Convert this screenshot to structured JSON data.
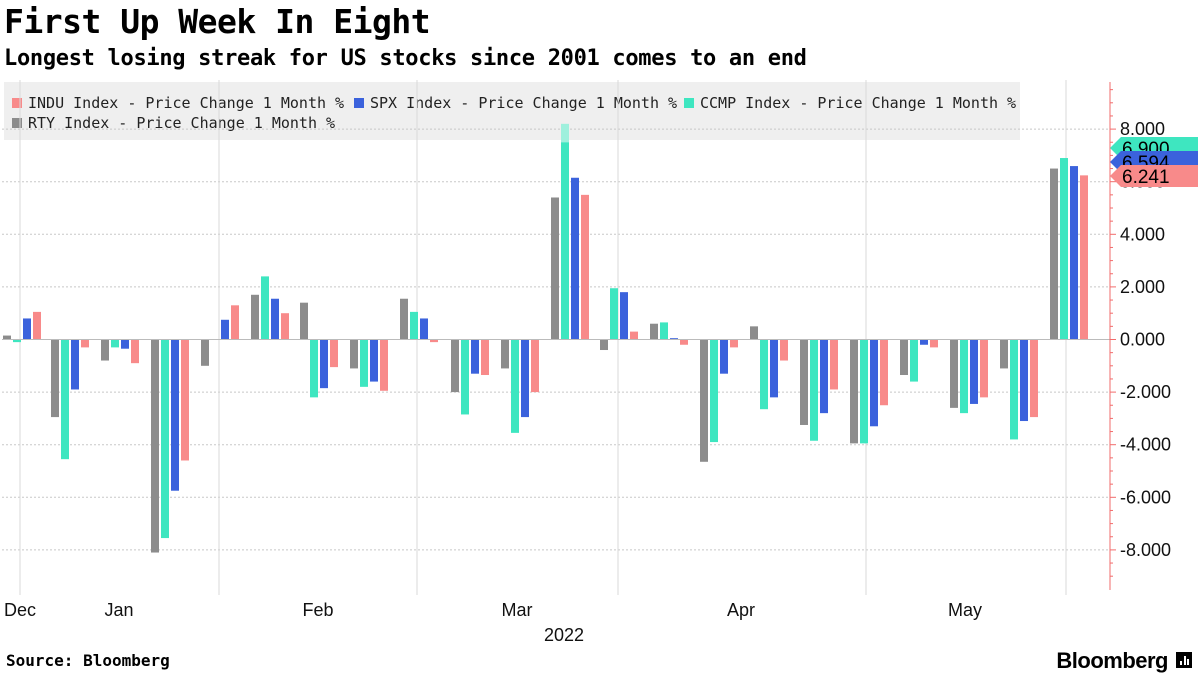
{
  "title": "First Up Week In Eight",
  "subtitle": "Longest losing streak for US stocks since 2001 comes to an end",
  "source": "Source: Bloomberg",
  "brand": "Bloomberg",
  "chart_data": {
    "type": "bar",
    "title": "First Up Week In Eight",
    "ylim": [
      -9.2,
      9.8
    ],
    "yticks": [
      -8,
      -6,
      -4,
      -2,
      0,
      2,
      4,
      6,
      8
    ],
    "ytick_labels": [
      "-8.000",
      "-6.000",
      "-4.000",
      "-2.000",
      "0.000",
      "2.000",
      "4.000",
      "6.000",
      "8.000"
    ],
    "x_axis_labels": [
      "Dec",
      "Jan",
      "Feb",
      "Mar",
      "Apr",
      "May"
    ],
    "year_label": "2022",
    "series": [
      {
        "name": "RTY Index - Price Change 1 Month %",
        "color": "#8c8c8c",
        "values": [
          0.15,
          -2.95,
          -0.8,
          -8.1,
          -1.0,
          1.7,
          1.4,
          -1.1,
          1.55,
          -2.0,
          -1.1,
          5.4,
          -0.4,
          0.6,
          -4.65,
          0.5,
          -3.25,
          -3.95,
          -1.35,
          -2.6,
          -1.1,
          6.5
        ]
      },
      {
        "name": "CCMP Index - Price Change 1 Month %",
        "color": "#3ee6c0",
        "values": [
          -0.1,
          -4.55,
          -0.3,
          -7.55,
          0.0,
          2.4,
          -2.2,
          -1.8,
          1.05,
          -2.85,
          -3.55,
          7.5,
          1.95,
          0.65,
          -3.9,
          -2.65,
          -3.85,
          -3.95,
          -1.6,
          -2.8,
          -3.8,
          6.9
        ],
        "values_extension": [
          0,
          0,
          0,
          0,
          0,
          0,
          0,
          0,
          0,
          0,
          0,
          8.2,
          0,
          0,
          0,
          0,
          0,
          0,
          0,
          0,
          0,
          0
        ]
      },
      {
        "name": "SPX Index - Price Change 1 Month %",
        "color": "#3b62dc",
        "values": [
          0.8,
          -1.9,
          -0.35,
          -5.75,
          0.75,
          1.55,
          -1.85,
          -1.6,
          0.8,
          -1.3,
          -2.95,
          6.15,
          1.8,
          0.05,
          -1.3,
          -2.2,
          -2.8,
          -3.3,
          -0.2,
          -2.45,
          -3.1,
          6.594
        ]
      },
      {
        "name": "INDU Index - Price Change 1 Month %",
        "color": "#f88a8a",
        "values": [
          1.05,
          -0.3,
          -0.9,
          -4.6,
          1.3,
          1.0,
          -1.05,
          -1.95,
          -0.1,
          -1.35,
          -2.0,
          5.5,
          0.3,
          -0.2,
          -0.3,
          -0.8,
          -1.9,
          -2.5,
          -0.3,
          -2.2,
          -2.95,
          6.241
        ]
      }
    ],
    "end_labels": [
      {
        "series": "CCMP Index - Price Change 1 Month %",
        "value": 6.9,
        "label": "6.900",
        "color": "#3ee6c0"
      },
      {
        "series": "SPX Index - Price Change 1 Month %",
        "value": 6.594,
        "label": "6.594",
        "color": "#3b62dc"
      },
      {
        "series": "INDU Index - Price Change 1 Month %",
        "value": 6.241,
        "label": "6.241",
        "color": "#f88a8a"
      }
    ]
  },
  "legend": [
    {
      "label": "INDU Index - Price Change 1 Month %",
      "color": "#f88a8a"
    },
    {
      "label": "SPX Index - Price Change 1 Month %",
      "color": "#3b62dc"
    },
    {
      "label": "CCMP Index - Price Change 1 Month %",
      "color": "#3ee6c0"
    },
    {
      "label": "RTY Index - Price Change 1 Month %",
      "color": "#8c8c8c"
    }
  ]
}
